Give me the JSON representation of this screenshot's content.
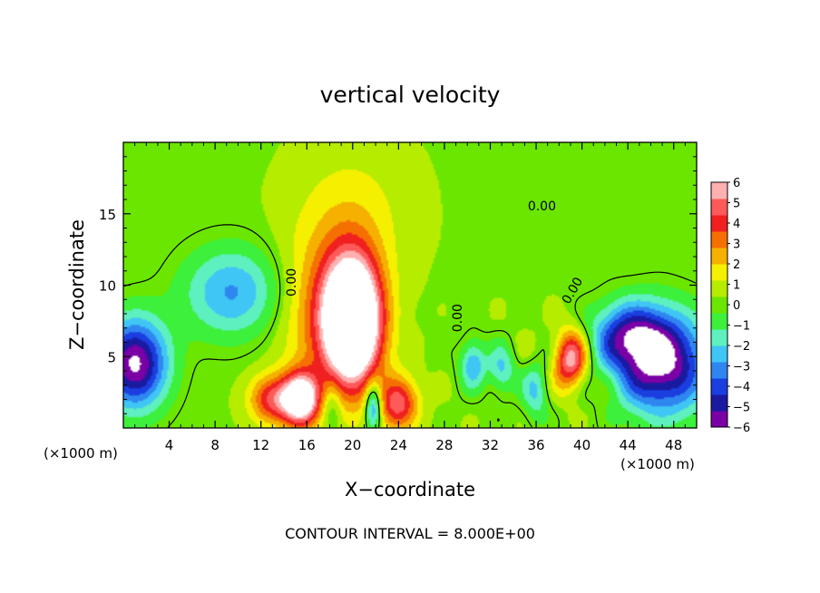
{
  "chart_data": {
    "type": "heatmap",
    "title": "vertical velocity",
    "xlabel": "X−coordinate",
    "ylabel": "Z−coordinate",
    "x_unit_left": "(×1000 m)",
    "x_unit_right": "(×1000 m)",
    "footer": "CONTOUR INTERVAL = 8.000E+00",
    "xlim": [
      0,
      50
    ],
    "ylim": [
      0,
      20
    ],
    "x_ticks": [
      4,
      8,
      12,
      16,
      20,
      24,
      28,
      32,
      36,
      40,
      44,
      48
    ],
    "x_tick_labels": [
      "4",
      "8",
      "12",
      "16",
      "20",
      "24",
      "28",
      "32",
      "36",
      "40",
      "44",
      "48"
    ],
    "y_ticks": [
      5,
      10,
      15
    ],
    "y_tick_labels": [
      "5",
      "10",
      "15"
    ],
    "contour_labels": [
      {
        "text": "0.00",
        "x": 14.7,
        "z": 10.2,
        "angle": -90
      },
      {
        "text": "0.00",
        "x": 36.5,
        "z": 15.5,
        "angle": 0
      },
      {
        "text": "0.00",
        "x": 29.2,
        "z": 7.7,
        "angle": -90
      },
      {
        "text": "0.00",
        "x": 39.2,
        "z": 9.6,
        "angle": -60
      }
    ],
    "colorbar": {
      "min": -6,
      "max": 6,
      "tick_labels": [
        "6",
        "5",
        "4",
        "3",
        "2",
        "1",
        "0",
        "−1",
        "−2",
        "−3",
        "−4",
        "−5",
        "−6"
      ],
      "colors": [
        "#7a00a6",
        "#1a1aa0",
        "#1a3ee0",
        "#2f86f0",
        "#3fc6f5",
        "#5ff0c0",
        "#3cf03c",
        "#6be600",
        "#b5ec00",
        "#f5f000",
        "#f5b000",
        "#f57000",
        "#f02020",
        "#ff5a5a",
        "#ffb0b0"
      ]
    },
    "features": [
      {
        "kind": "updraft",
        "x": 20.0,
        "z": 7.5,
        "peak": 11,
        "sx": 1.8,
        "sz": 3.2
      },
      {
        "kind": "updraft",
        "x": 15.5,
        "z": 2.0,
        "peak": 7.5,
        "sx": 1.1,
        "sz": 1.3
      },
      {
        "kind": "updraft",
        "x": 13.0,
        "z": 2.0,
        "peak": 4,
        "sx": 1.4,
        "sz": 1.2
      },
      {
        "kind": "updraft",
        "x": 24.0,
        "z": 1.7,
        "peak": 4.5,
        "sx": 1.2,
        "sz": 1.3
      },
      {
        "kind": "updraft",
        "x": 39.0,
        "z": 4.8,
        "peak": 5.5,
        "sx": 1.0,
        "sz": 1.4
      },
      {
        "kind": "updraft",
        "x": 17.0,
        "z": 8.0,
        "peak": 2.2,
        "sx": 2.5,
        "sz": 4.0
      },
      {
        "kind": "updraft",
        "x": 20.0,
        "z": 15.0,
        "peak": 1.2,
        "sx": 3.5,
        "sz": 3.5
      },
      {
        "kind": "downdraft",
        "x": 1.0,
        "z": 4.5,
        "peak": -6.5,
        "sx": 2.0,
        "sz": 2.2
      },
      {
        "kind": "downdraft",
        "x": 9.5,
        "z": 9.5,
        "peak": -3.2,
        "sx": 3.0,
        "sz": 2.2
      },
      {
        "kind": "downdraft",
        "x": 47.0,
        "z": 4.5,
        "peak": -6.5,
        "sx": 2.8,
        "sz": 2.5
      },
      {
        "kind": "downdraft",
        "x": 44.0,
        "z": 6.5,
        "peak": -4.0,
        "sx": 2.2,
        "sz": 1.6
      },
      {
        "kind": "downdraft",
        "x": 30.5,
        "z": 4.5,
        "peak": -3.0,
        "sx": 0.8,
        "sz": 1.2
      },
      {
        "kind": "downdraft",
        "x": 33.0,
        "z": 4.0,
        "peak": -2.5,
        "sx": 0.8,
        "sz": 1.2
      },
      {
        "kind": "downdraft",
        "x": 21.8,
        "z": 1.5,
        "peak": -4.5,
        "sx": 0.5,
        "sz": 1.2
      },
      {
        "kind": "downdraft",
        "x": 18.2,
        "z": 1.5,
        "peak": -1.8,
        "sx": 0.6,
        "sz": 1.3
      },
      {
        "kind": "downdraft",
        "x": 36.0,
        "z": 2.5,
        "peak": -2.2,
        "sx": 0.8,
        "sz": 1.5
      }
    ]
  }
}
